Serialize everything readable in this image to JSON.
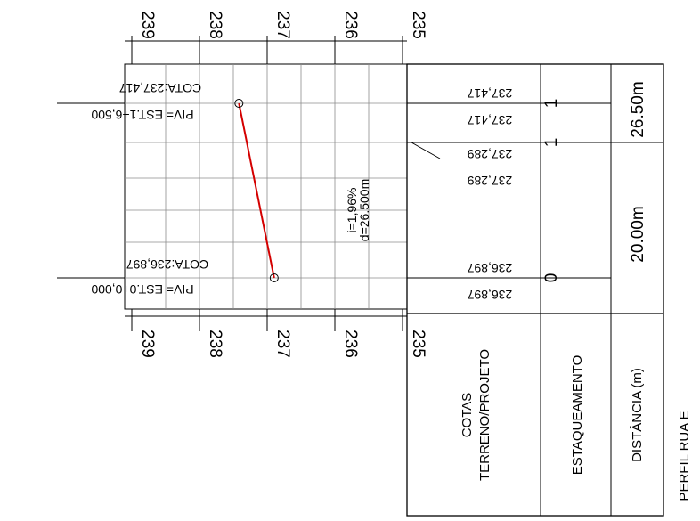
{
  "title": "PERFIL RUA E",
  "chart_data": {
    "type": "line",
    "elevation_ticks": [
      "239",
      "238",
      "237",
      "236",
      "235"
    ],
    "series": [
      {
        "name": "",
        "color": "#d40000",
        "points": [
          {
            "station": "EST.0+0,000",
            "distance": 0,
            "elevation": 236.897
          },
          {
            "station": "EST.1+6,500",
            "distance": 26.5,
            "elevation": 237.417
          }
        ]
      }
    ],
    "annotations": {
      "slope": "i=1,96%",
      "length": "d=26.500m",
      "piv_start": "PIV= EST.0+0,000",
      "cota_start": "COTA:236,897",
      "piv_end": "PIV= EST.1+6,500",
      "cota_end": "COTA:237,417"
    }
  },
  "table": {
    "row_labels": {
      "cotas_line1": "COTAS",
      "cotas_line2": "TERRENO/PROJETO",
      "estaqueamento": "ESTAQUEAMENTO",
      "distancia": "DISTÂNCIA (m)"
    },
    "cotas": {
      "start_terreno": "236,897",
      "start_projeto": "236,897",
      "mid_terreno": "237,289",
      "mid_projeto": "237,289",
      "end_terreno": "237,417",
      "end_projeto": "237,417"
    },
    "estacas": [
      "0",
      "1",
      "1"
    ],
    "distancias": [
      "20.00m",
      "26.50m"
    ]
  }
}
